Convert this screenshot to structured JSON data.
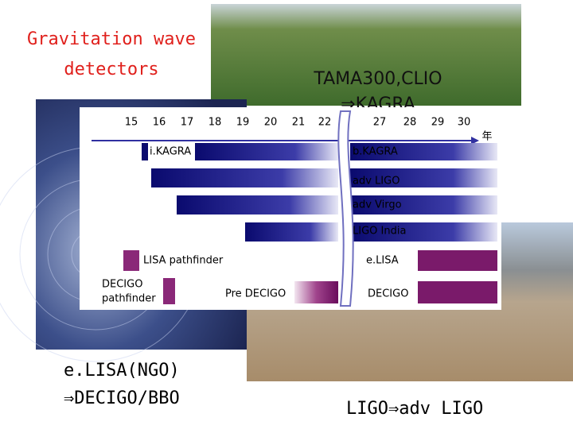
{
  "title": [
    "Gravitation wave",
    "detectors"
  ],
  "photo_caption": [
    "TAMA300,CLIO",
    "⇒KAGRA"
  ],
  "timeline": {
    "years": [
      "15",
      "16",
      "17",
      "18",
      "19",
      "20",
      "21",
      "22",
      "27",
      "28",
      "29",
      "30"
    ],
    "unit": "年",
    "labels": [
      "i.KAGRA",
      "b.KAGRA",
      "adv LIGO",
      "adv Virgo",
      "LIGO India",
      "LISA pathfinder",
      "e.LISA",
      "DECIGO",
      "pathfinder",
      "Pre DECIGO",
      "DECIGO"
    ]
  },
  "captions": {
    "space": [
      "e.LISA(NGO)",
      "⇒DECIGO/BBO"
    ],
    "ground": "LIGO⇒adv LIGO"
  }
}
